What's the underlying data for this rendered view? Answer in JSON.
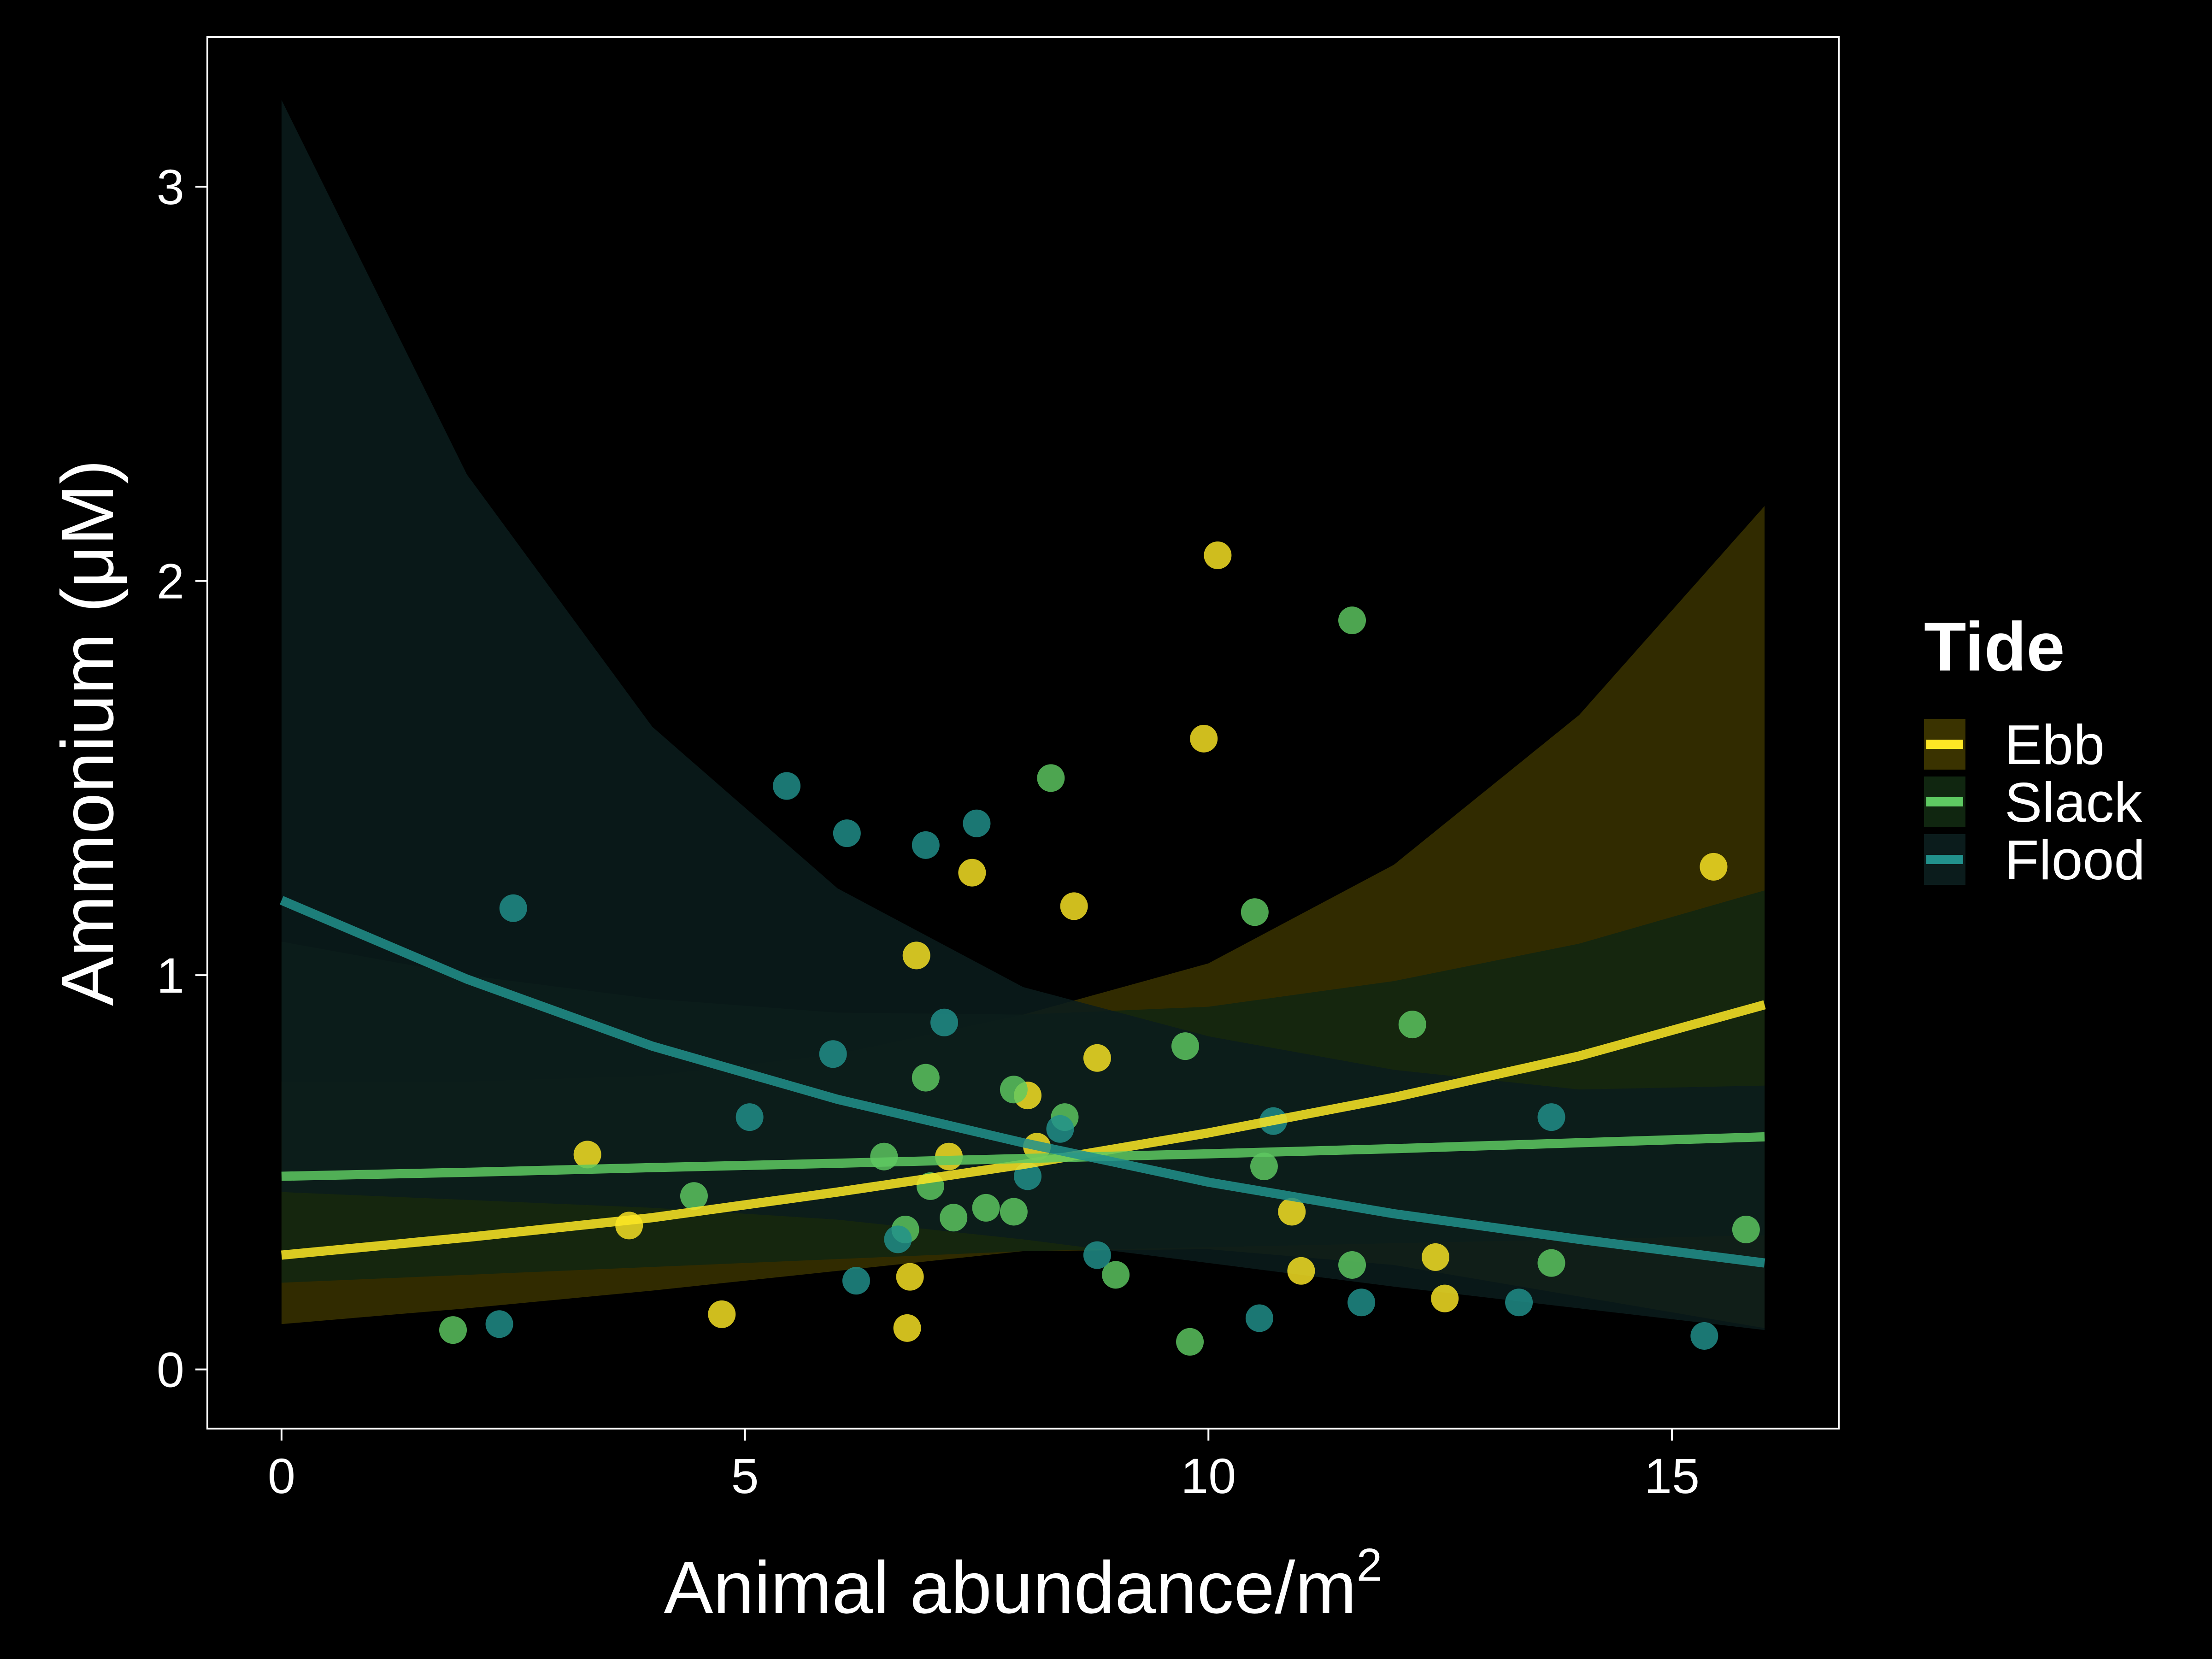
{
  "chart_data": {
    "type": "scatter",
    "title": "",
    "xlabel": "Animal abundance/m",
    "xlabel_superscript": "2",
    "ylabel": "Ammonium (μM)",
    "xlim": [
      -0.8,
      16.8
    ],
    "ylim": [
      -0.15,
      3.38
    ],
    "xticks": [
      0,
      5,
      10,
      15
    ],
    "yticks": [
      0,
      1,
      2,
      3
    ],
    "grid": false,
    "background": "#000000",
    "legend": {
      "title": "Tide",
      "placement": "right",
      "items": [
        {
          "label": "Ebb",
          "color": "#fde725"
        },
        {
          "label": "Slack",
          "color": "#5ec962"
        },
        {
          "label": "Flood",
          "color": "#21918c"
        }
      ]
    },
    "series": [
      {
        "name": "Ebb",
        "color": "#fde725",
        "band_color": "#3a3300",
        "fit": {
          "x": [
            0,
            2,
            4,
            6,
            8,
            10,
            12,
            14,
            16
          ],
          "y": [
            0.29,
            0.335,
            0.385,
            0.45,
            0.52,
            0.6,
            0.69,
            0.795,
            0.925
          ],
          "lower": [
            0.115,
            0.155,
            0.2,
            0.25,
            0.3,
            0.305,
            0.265,
            0.185,
            0.105
          ],
          "upper": [
            0.73,
            0.73,
            0.745,
            0.8,
            0.9,
            1.03,
            1.28,
            1.66,
            2.19
          ]
        },
        "points": [
          {
            "x": 3.3,
            "y": 0.545
          },
          {
            "x": 3.75,
            "y": 0.365
          },
          {
            "x": 4.75,
            "y": 0.14
          },
          {
            "x": 6.75,
            "y": 0.105
          },
          {
            "x": 6.78,
            "y": 0.235
          },
          {
            "x": 6.85,
            "y": 1.05
          },
          {
            "x": 7.2,
            "y": 0.54
          },
          {
            "x": 7.45,
            "y": 1.26
          },
          {
            "x": 8.05,
            "y": 0.695
          },
          {
            "x": 8.15,
            "y": 0.565
          },
          {
            "x": 8.55,
            "y": 1.175
          },
          {
            "x": 8.8,
            "y": 0.79
          },
          {
            "x": 9.95,
            "y": 1.6
          },
          {
            "x": 10.1,
            "y": 2.065
          },
          {
            "x": 10.9,
            "y": 0.4
          },
          {
            "x": 11.0,
            "y": 0.25
          },
          {
            "x": 12.45,
            "y": 0.285
          },
          {
            "x": 12.55,
            "y": 0.18
          },
          {
            "x": 15.45,
            "y": 1.275
          }
        ]
      },
      {
        "name": "Slack",
        "color": "#5ec962",
        "band_color": "#102610",
        "fit": {
          "x": [
            0,
            2,
            4,
            6,
            8,
            10,
            12,
            14,
            16
          ],
          "y": [
            0.49,
            0.5,
            0.512,
            0.523,
            0.535,
            0.547,
            0.56,
            0.575,
            0.59
          ],
          "lower": [
            0.22,
            0.24,
            0.26,
            0.28,
            0.3,
            0.31,
            0.32,
            0.33,
            0.34
          ],
          "upper": [
            1.085,
            1.0,
            0.94,
            0.905,
            0.9,
            0.92,
            0.985,
            1.08,
            1.215
          ]
        },
        "points": [
          {
            "x": 1.85,
            "y": 0.1
          },
          {
            "x": 4.45,
            "y": 0.44
          },
          {
            "x": 6.5,
            "y": 0.54
          },
          {
            "x": 6.95,
            "y": 0.74
          },
          {
            "x": 7.0,
            "y": 0.465
          },
          {
            "x": 6.73,
            "y": 0.355
          },
          {
            "x": 7.25,
            "y": 0.385
          },
          {
            "x": 7.6,
            "y": 0.41
          },
          {
            "x": 7.9,
            "y": 0.4
          },
          {
            "x": 7.9,
            "y": 0.71
          },
          {
            "x": 8.3,
            "y": 1.5
          },
          {
            "x": 8.45,
            "y": 0.64
          },
          {
            "x": 9.0,
            "y": 0.24
          },
          {
            "x": 9.75,
            "y": 0.82
          },
          {
            "x": 9.8,
            "y": 0.07
          },
          {
            "x": 10.5,
            "y": 1.16
          },
          {
            "x": 10.6,
            "y": 0.515
          },
          {
            "x": 11.55,
            "y": 0.265
          },
          {
            "x": 11.55,
            "y": 1.9
          },
          {
            "x": 12.2,
            "y": 0.875
          },
          {
            "x": 13.7,
            "y": 0.27
          },
          {
            "x": 15.8,
            "y": 0.355
          }
        ]
      },
      {
        "name": "Flood",
        "color": "#21918c",
        "band_color": "#0b1c1c",
        "fit": {
          "x": [
            0,
            2,
            4,
            6,
            8,
            10,
            12,
            14,
            16
          ],
          "y": [
            1.19,
            0.99,
            0.82,
            0.685,
            0.575,
            0.475,
            0.395,
            0.33,
            0.27
          ],
          "lower": [
            0.45,
            0.43,
            0.41,
            0.38,
            0.33,
            0.27,
            0.21,
            0.155,
            0.1
          ],
          "upper": [
            3.22,
            2.27,
            1.63,
            1.22,
            0.97,
            0.845,
            0.76,
            0.71,
            0.72
          ]
        },
        "points": [
          {
            "x": 2.35,
            "y": 0.115
          },
          {
            "x": 2.5,
            "y": 1.17
          },
          {
            "x": 5.05,
            "y": 0.64
          },
          {
            "x": 5.45,
            "y": 1.48
          },
          {
            "x": 5.95,
            "y": 0.8
          },
          {
            "x": 6.1,
            "y": 1.36
          },
          {
            "x": 6.2,
            "y": 0.225
          },
          {
            "x": 6.65,
            "y": 0.33
          },
          {
            "x": 6.95,
            "y": 1.33
          },
          {
            "x": 7.15,
            "y": 0.88
          },
          {
            "x": 7.5,
            "y": 1.385
          },
          {
            "x": 8.05,
            "y": 0.49
          },
          {
            "x": 8.4,
            "y": 0.61
          },
          {
            "x": 8.8,
            "y": 0.29
          },
          {
            "x": 10.55,
            "y": 0.13
          },
          {
            "x": 10.7,
            "y": 0.63
          },
          {
            "x": 11.65,
            "y": 0.17
          },
          {
            "x": 13.35,
            "y": 0.17
          },
          {
            "x": 13.7,
            "y": 0.64
          },
          {
            "x": 15.35,
            "y": 0.085
          }
        ]
      }
    ]
  }
}
